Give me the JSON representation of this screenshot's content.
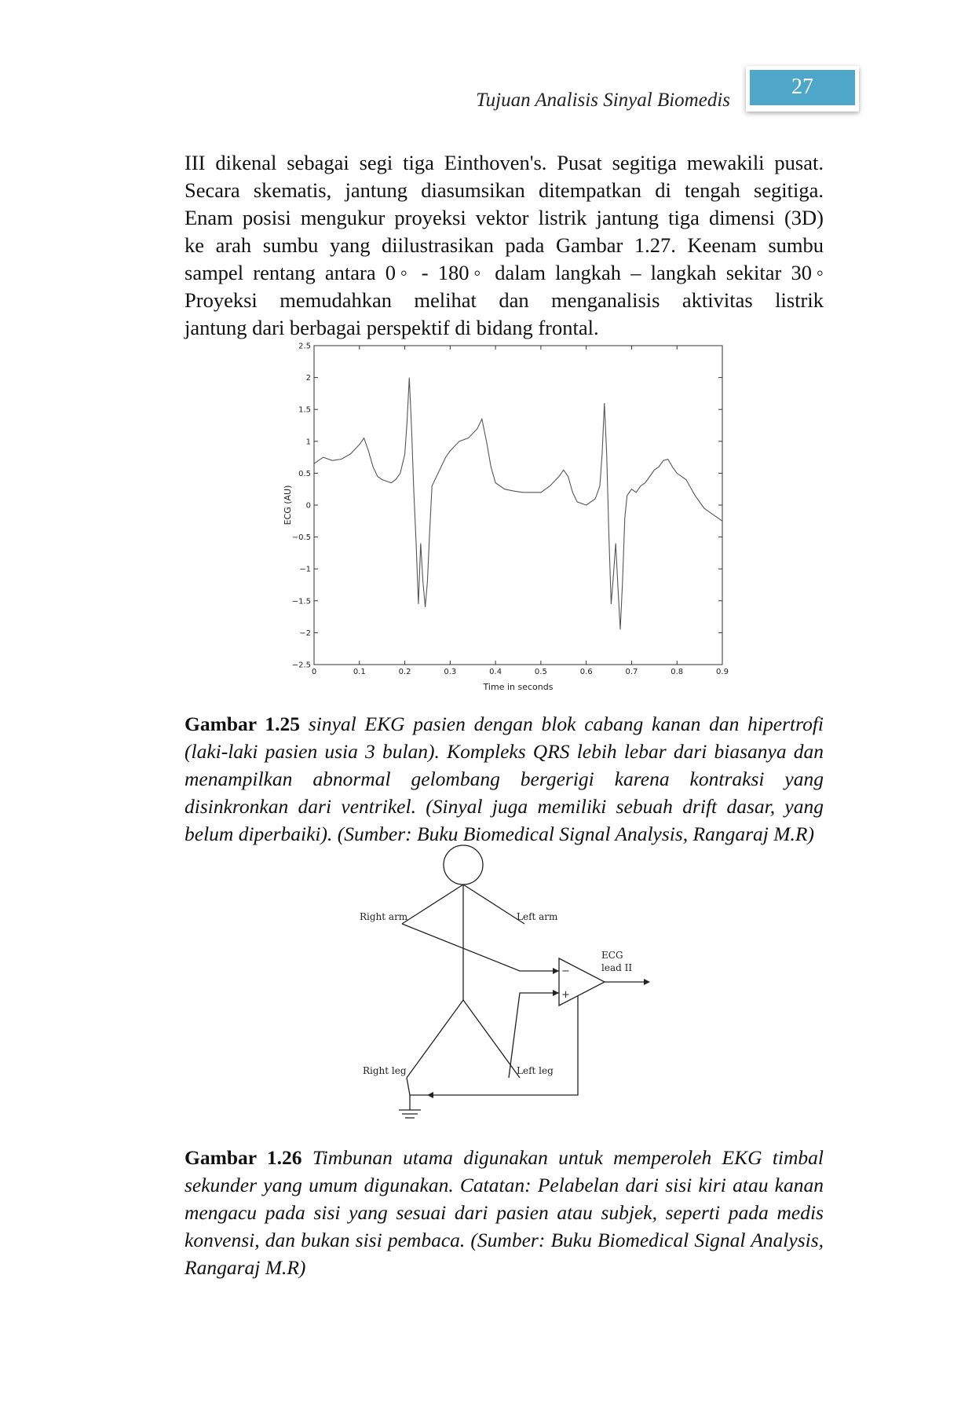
{
  "header": {
    "running_title": "Tujuan Analisis Sinyal Biomedis",
    "page_number": "27",
    "tab_color": "#4ea7c9"
  },
  "body_paragraph": {
    "lines": [
      "III dikenal sebagai segi tiga Einthoven's. Pusat segitiga mewakili pusat.",
      "Secara skematis, jantung diasumsikan ditempatkan di tengah segitiga.",
      "Enam posisi mengukur proyeksi vektor listrik jantung tiga dimensi (3D)",
      "ke arah sumbu yang diilustrasikan pada Gambar 1.27. Keenam sumbu",
      "sampel rentang antara 0◦ - 180◦ dalam langkah – langkah sekitar 30◦",
      "Proyeksi memudahkan melihat dan menganalisis aktivitas  listrik",
      "jantung dari berbagai perspektif di bidang frontal."
    ]
  },
  "chart_data": {
    "type": "line",
    "title": "",
    "xlabel": "Time in seconds",
    "ylabel": "ECG (AU)",
    "xlim": [
      0,
      0.9
    ],
    "ylim": [
      -2.5,
      2.5
    ],
    "xticks": [
      "0",
      "0.1",
      "0.2",
      "0.3",
      "0.4",
      "0.5",
      "0.6",
      "0.7",
      "0.8",
      "0.9"
    ],
    "yticks": [
      "2.5",
      "2",
      "1.5",
      "1",
      "0.5",
      "0",
      "−0.5",
      "−1",
      "−1.5",
      "−2",
      "−2.5"
    ],
    "grid": false,
    "line_color": "#555555",
    "series": [
      {
        "x": [
          0,
          0.02,
          0.04,
          0.06,
          0.08,
          0.1,
          0.11,
          0.12,
          0.13,
          0.14,
          0.15,
          0.17,
          0.18,
          0.19,
          0.2,
          0.205,
          0.21,
          0.215,
          0.22,
          0.225,
          0.23,
          0.235,
          0.24,
          0.245,
          0.25,
          0.255,
          0.26,
          0.27,
          0.28,
          0.29,
          0.3,
          0.32,
          0.34,
          0.36,
          0.37,
          0.38,
          0.39,
          0.4,
          0.42,
          0.44,
          0.46,
          0.48,
          0.5,
          0.52,
          0.54,
          0.55,
          0.56,
          0.57,
          0.58,
          0.6,
          0.61,
          0.62,
          0.63,
          0.635,
          0.64,
          0.645,
          0.65,
          0.655,
          0.66,
          0.665,
          0.67,
          0.675,
          0.68,
          0.685,
          0.69,
          0.7,
          0.71,
          0.72,
          0.73,
          0.74,
          0.75,
          0.76,
          0.77,
          0.78,
          0.79,
          0.8,
          0.82,
          0.84,
          0.86,
          0.88,
          0.9
        ],
        "y": [
          0.65,
          0.75,
          0.7,
          0.72,
          0.8,
          0.95,
          1.05,
          0.85,
          0.6,
          0.45,
          0.4,
          0.35,
          0.4,
          0.5,
          0.8,
          1.3,
          2.0,
          1.2,
          0.2,
          -0.6,
          -1.55,
          -0.6,
          -1.2,
          -1.6,
          -1.2,
          -0.4,
          0.3,
          0.45,
          0.6,
          0.75,
          0.85,
          1.0,
          1.05,
          1.2,
          1.35,
          1.0,
          0.6,
          0.35,
          0.25,
          0.22,
          0.2,
          0.2,
          0.2,
          0.3,
          0.45,
          0.55,
          0.45,
          0.2,
          0.05,
          0.0,
          0.05,
          0.1,
          0.3,
          0.8,
          1.6,
          0.8,
          -0.5,
          -1.55,
          -1.1,
          -0.6,
          -1.3,
          -1.95,
          -1.2,
          -0.2,
          0.15,
          0.25,
          0.2,
          0.3,
          0.35,
          0.45,
          0.55,
          0.6,
          0.7,
          0.72,
          0.6,
          0.5,
          0.4,
          0.15,
          -0.05,
          -0.15,
          -0.25
        ]
      }
    ]
  },
  "figure_125": {
    "label": "Gambar 1.25",
    "lines": [
      " sinyal EKG pasien dengan blok cabang kanan dan hipertrofi",
      "(laki-laki pasien usia 3 bulan). Kompleks QRS lebih lebar dari biasanya dan",
      "menampilkan abnormal gelombang bergerigi karena kontraksi yang",
      "disinkronkan dari ventrikel. (Sinyal juga memiliki sebuah drift dasar, yang",
      "belum diperbaiki). (Sumber: Buku Biomedical Signal Analysis, Rangaraj M.R)"
    ]
  },
  "diagram": {
    "right_arm": "Right arm",
    "left_arm": "Left arm",
    "right_leg": "Right leg",
    "left_leg": "Left leg",
    "ecg": "ECG",
    "lead": "lead II",
    "minus": "−",
    "plus": "+"
  },
  "figure_126": {
    "label": "Gambar 1.26",
    "lines": [
      " Timbunan utama digunakan untuk memperoleh EKG timbal",
      "sekunder yang umum digunakan. Catatan: Pelabelan dari sisi kiri atau kanan",
      "mengacu pada sisi yang sesuai dari pasien atau subjek, seperti pada medis",
      "konvensi, dan bukan sisi pembaca. (Sumber: Buku Biomedical Signal Analysis,",
      "Rangaraj M.R)"
    ]
  }
}
